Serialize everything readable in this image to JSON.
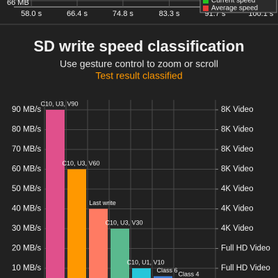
{
  "chart_data": [
    {
      "type": "line",
      "xlim": [
        54.8,
        102.6
      ],
      "xticks": [
        {
          "value": 58.0,
          "label": "58.0 s"
        },
        {
          "value": 66.4,
          "label": "66.4 s"
        },
        {
          "value": 74.8,
          "label": "74.8 s"
        },
        {
          "value": 83.3,
          "label": "83.3 s"
        },
        {
          "value": 91.7,
          "label": "91.7 s"
        },
        {
          "value": 100.1,
          "label": "100.1 s"
        }
      ],
      "yticks": [
        {
          "value": 66,
          "label": "66 MB"
        }
      ],
      "series": [
        {
          "name": "Current speed",
          "color": "#22c322"
        },
        {
          "name": "Average speed",
          "color": "#e53935"
        }
      ],
      "grid": true
    },
    {
      "type": "bar",
      "title": "SD write speed classification",
      "subtitle": "Use gesture control to zoom or scroll",
      "annotation": "Test result classified",
      "categories": [
        "C10, U3, V90",
        "C10, U3, V60",
        "Last write",
        "C10, U3, V30",
        "C10, U1, V10",
        "Class 6",
        "Class 4"
      ],
      "values": [
        90,
        60,
        40,
        30,
        10,
        6,
        4
      ],
      "colors": [
        "#e0508c",
        "#ff9800",
        "#ff7b63",
        "#5ab98e",
        "#26c6da",
        "#3d7fd6",
        "#9e9e9e"
      ],
      "ylim": [
        0,
        95
      ],
      "yticks": [
        {
          "value": 10,
          "label": "10 MB/s"
        },
        {
          "value": 20,
          "label": "20 MB/s"
        },
        {
          "value": 30,
          "label": "30 MB/s"
        },
        {
          "value": 40,
          "label": "40 MB/s"
        },
        {
          "value": 50,
          "label": "50 MB/s"
        },
        {
          "value": 60,
          "label": "60 MB/s"
        },
        {
          "value": 70,
          "label": "70 MB/s"
        },
        {
          "value": 80,
          "label": "80 MB/s"
        },
        {
          "value": 90,
          "label": "90 MB/s"
        }
      ],
      "y2lim": [
        0,
        95
      ],
      "y2ticks": [
        {
          "value": 10,
          "label": "Full HD Video"
        },
        {
          "value": 20,
          "label": "Full HD Video"
        },
        {
          "value": 30,
          "label": "4K Video"
        },
        {
          "value": 40,
          "label": "4K Video"
        },
        {
          "value": 50,
          "label": "4K Video"
        },
        {
          "value": 60,
          "label": "8K Video"
        },
        {
          "value": 70,
          "label": "8K Video"
        },
        {
          "value": 80,
          "label": "8K Video"
        },
        {
          "value": 90,
          "label": "8K Video"
        }
      ],
      "grid": true
    }
  ]
}
